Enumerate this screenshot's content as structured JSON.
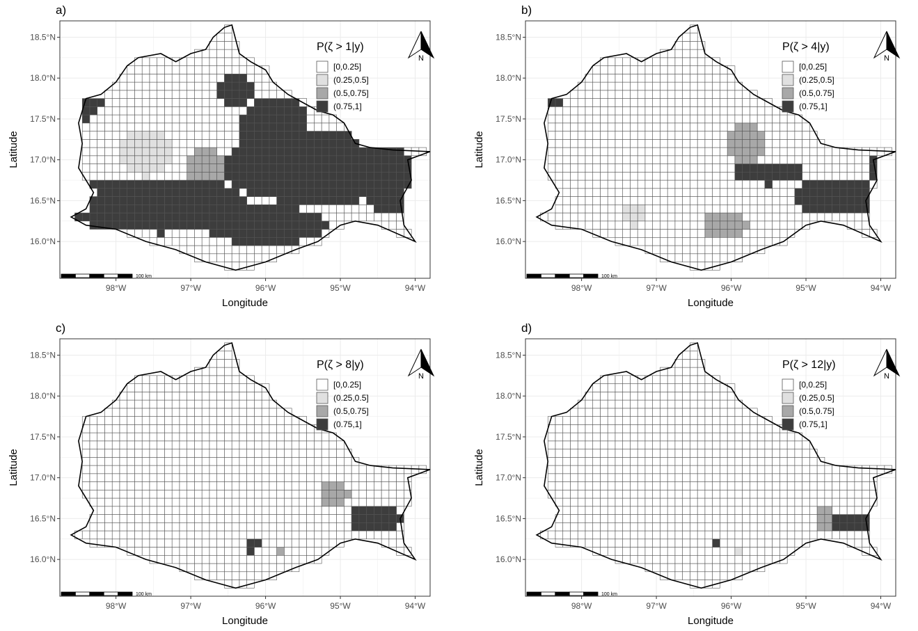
{
  "figure": {
    "x_axis_title": "Longitude",
    "y_axis_title": "Latitude",
    "x_ticks": [
      "98°W",
      "97°W",
      "96°W",
      "95°W",
      "94°W"
    ],
    "y_ticks": [
      "16.0°N",
      "16.5°N",
      "17.0°N",
      "17.5°N",
      "18.0°N",
      "18.5°N"
    ],
    "legend_items": [
      "[0,0.25]",
      "(0.25,0.5]",
      "(0.5,0.75]",
      "(0.75,1]"
    ],
    "legend_colors": [
      "#ffffff",
      "#e0e0e0",
      "#a8a8a8",
      "#3d3d3d"
    ],
    "north_arrow_label": "N",
    "scale_bar_label": "100 km",
    "grid_color": "#ebebeb",
    "cell_outline_color": "#555555",
    "border_color": "#000000"
  },
  "chart_data": [
    {
      "type": "heatmap",
      "panel_label": "a)",
      "legend_title": "P(ζ > 1|y)",
      "xlabel": "Longitude",
      "ylabel": "Latitude",
      "xlim": [
        -98.75,
        -93.8
      ],
      "ylim": [
        15.55,
        18.7
      ],
      "categories": [
        "[0,0.25]",
        "(0.25,0.5]",
        "(0.5,0.75]",
        "(0.75,1]"
      ],
      "hotspots": [
        {
          "lon": -96.0,
          "lat": 16.2,
          "rx": 0.8,
          "ry": 0.25,
          "level": 3
        },
        {
          "lon": -97.4,
          "lat": 16.45,
          "rx": 1.2,
          "ry": 0.35,
          "level": 3
        },
        {
          "lon": -95.3,
          "lat": 16.9,
          "rx": 1.3,
          "ry": 0.45,
          "level": 3
        },
        {
          "lon": -95.9,
          "lat": 17.3,
          "rx": 0.5,
          "ry": 0.5,
          "level": 3
        },
        {
          "lon": -96.4,
          "lat": 17.85,
          "rx": 0.25,
          "ry": 0.2,
          "level": 3
        },
        {
          "lon": -94.3,
          "lat": 16.7,
          "rx": 0.4,
          "ry": 0.35,
          "level": 3
        },
        {
          "lon": -98.3,
          "lat": 16.5,
          "rx": 0.3,
          "ry": 0.3,
          "level": 3
        },
        {
          "lon": -96.8,
          "lat": 16.9,
          "rx": 0.3,
          "ry": 0.25,
          "level": 2
        },
        {
          "lon": -97.6,
          "lat": 17.1,
          "rx": 0.35,
          "ry": 0.3,
          "level": 1
        },
        {
          "lon": -98.4,
          "lat": 17.7,
          "rx": 0.2,
          "ry": 0.2,
          "level": 3
        }
      ]
    },
    {
      "type": "heatmap",
      "panel_label": "b)",
      "legend_title": "P(ζ > 4|y)",
      "xlabel": "Longitude",
      "ylabel": "Latitude",
      "xlim": [
        -98.75,
        -93.8
      ],
      "ylim": [
        15.55,
        18.7
      ],
      "categories": [
        "[0,0.25]",
        "(0.25,0.5]",
        "(0.5,0.75]",
        "(0.75,1]"
      ],
      "hotspots": [
        {
          "lon": -94.6,
          "lat": 16.55,
          "rx": 0.55,
          "ry": 0.22,
          "level": 3
        },
        {
          "lon": -95.5,
          "lat": 16.85,
          "rx": 0.5,
          "ry": 0.15,
          "level": 3
        },
        {
          "lon": -95.8,
          "lat": 17.2,
          "rx": 0.25,
          "ry": 0.3,
          "level": 2
        },
        {
          "lon": -96.1,
          "lat": 16.2,
          "rx": 0.3,
          "ry": 0.15,
          "level": 2
        },
        {
          "lon": -98.4,
          "lat": 17.75,
          "rx": 0.12,
          "ry": 0.12,
          "level": 3
        },
        {
          "lon": -97.3,
          "lat": 16.35,
          "rx": 0.2,
          "ry": 0.15,
          "level": 1
        },
        {
          "lon": -94.0,
          "lat": 16.9,
          "rx": 0.15,
          "ry": 0.15,
          "level": 3
        }
      ]
    },
    {
      "type": "heatmap",
      "panel_label": "c)",
      "legend_title": "P(ζ > 8|y)",
      "xlabel": "Longitude",
      "ylabel": "Latitude",
      "xlim": [
        -98.75,
        -93.8
      ],
      "ylim": [
        15.55,
        18.7
      ],
      "categories": [
        "[0,0.25]",
        "(0.25,0.5]",
        "(0.5,0.75]",
        "(0.75,1]"
      ],
      "hotspots": [
        {
          "lon": -94.55,
          "lat": 16.5,
          "rx": 0.35,
          "ry": 0.17,
          "level": 3
        },
        {
          "lon": -95.1,
          "lat": 16.8,
          "rx": 0.2,
          "ry": 0.15,
          "level": 2
        },
        {
          "lon": -96.2,
          "lat": 16.2,
          "rx": 0.1,
          "ry": 0.1,
          "level": 3
        },
        {
          "lon": -95.8,
          "lat": 16.15,
          "rx": 0.1,
          "ry": 0.05,
          "level": 2
        },
        {
          "lon": -98.45,
          "lat": 17.15,
          "rx": 0.06,
          "ry": 0.06,
          "level": 1
        }
      ]
    },
    {
      "type": "heatmap",
      "panel_label": "d)",
      "legend_title": "P(ζ > 12|y)",
      "xlabel": "Longitude",
      "ylabel": "Latitude",
      "xlim": [
        -98.75,
        -93.8
      ],
      "ylim": [
        15.55,
        18.7
      ],
      "categories": [
        "[0,0.25]",
        "(0.25,0.5]",
        "(0.5,0.75]",
        "(0.75,1]"
      ],
      "hotspots": [
        {
          "lon": -94.4,
          "lat": 16.45,
          "rx": 0.25,
          "ry": 0.1,
          "level": 3
        },
        {
          "lon": -94.75,
          "lat": 16.5,
          "rx": 0.12,
          "ry": 0.15,
          "level": 2
        },
        {
          "lon": -95.35,
          "lat": 16.75,
          "rx": 0.06,
          "ry": 0.05,
          "level": 3
        },
        {
          "lon": -96.2,
          "lat": 16.2,
          "rx": 0.06,
          "ry": 0.06,
          "level": 3
        },
        {
          "lon": -95.9,
          "lat": 16.15,
          "rx": 0.07,
          "ry": 0.05,
          "level": 1
        }
      ]
    }
  ]
}
